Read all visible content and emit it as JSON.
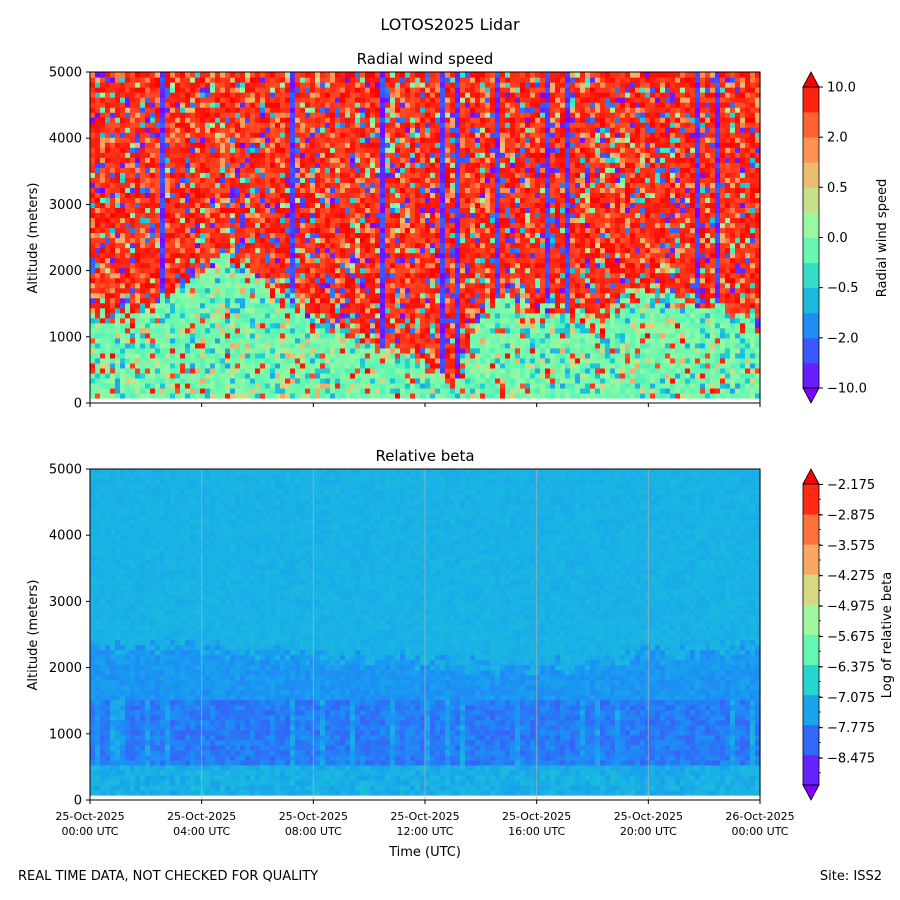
{
  "figure_title": "LOTOS2025 Lidar",
  "footer": {
    "left": "REAL TIME DATA, NOT CHECKED FOR QUALITY",
    "right": "Site: ISS2"
  },
  "colors": {
    "rainbow": [
      "#8000ff",
      "#4050fb",
      "#1996f3",
      "#1bcfd4",
      "#60f7b4",
      "#a2f89e",
      "#e1d17e",
      "#ff9a5a",
      "#ff5b2c",
      "#ff0000"
    ]
  },
  "chart_data": [
    {
      "type": "heatmap",
      "title": "Radial wind speed",
      "xlabel": "",
      "ylabel": "Altitude (meters)",
      "x_range_hours": [
        0,
        24
      ],
      "ylim": [
        0,
        5000
      ],
      "y_ticks": [
        "0",
        "1000",
        "2000",
        "3000",
        "4000",
        "5000"
      ],
      "colorbar": {
        "label": "Radial wind speed",
        "levels": 12,
        "tick_labels": [
          "10.0",
          "2.0",
          "0.5",
          "0.0",
          "−0.5",
          "−2.0",
          "−10.0"
        ]
      },
      "boundary_layer_top_m": [
        {
          "hour": 0,
          "alt": 1250
        },
        {
          "hour": 2,
          "alt": 1450
        },
        {
          "hour": 4,
          "alt": 1950
        },
        {
          "hour": 5,
          "alt": 2300
        },
        {
          "hour": 6,
          "alt": 1900
        },
        {
          "hour": 8,
          "alt": 1300
        },
        {
          "hour": 10,
          "alt": 900
        },
        {
          "hour": 12,
          "alt": 600
        },
        {
          "hour": 13,
          "alt": 200
        },
        {
          "hour": 14,
          "alt": 1500
        },
        {
          "hour": 16,
          "alt": 1450
        },
        {
          "hour": 18,
          "alt": 1300
        },
        {
          "hour": 20,
          "alt": 1700
        },
        {
          "hour": 22,
          "alt": 1500
        },
        {
          "hour": 24,
          "alt": 1200
        }
      ]
    },
    {
      "type": "heatmap",
      "title": "Relative beta",
      "xlabel": "Time (UTC)",
      "ylabel": "Altitude (meters)",
      "x_range_hours": [
        0,
        24
      ],
      "ylim": [
        0,
        5000
      ],
      "y_ticks": [
        "0",
        "1000",
        "2000",
        "3000",
        "4000",
        "5000"
      ],
      "x_ticks": [
        {
          "date": "25-Oct-2025",
          "time": "00:00 UTC"
        },
        {
          "date": "25-Oct-2025",
          "time": "04:00 UTC"
        },
        {
          "date": "25-Oct-2025",
          "time": "08:00 UTC"
        },
        {
          "date": "25-Oct-2025",
          "time": "12:00 UTC"
        },
        {
          "date": "25-Oct-2025",
          "time": "16:00 UTC"
        },
        {
          "date": "25-Oct-2025",
          "time": "20:00 UTC"
        },
        {
          "date": "26-Oct-2025",
          "time": "00:00 UTC"
        }
      ],
      "colorbar": {
        "label": "Log of relative beta",
        "levels": 10,
        "tick_labels": [
          "−2.175",
          "−2.875",
          "−3.575",
          "−4.275",
          "−4.975",
          "−5.675",
          "−6.375",
          "−7.075",
          "−7.775",
          "−8.475"
        ]
      },
      "aerosol_layer_top_m": [
        {
          "hour": 0,
          "alt": 2400
        },
        {
          "hour": 4,
          "alt": 2300
        },
        {
          "hour": 8,
          "alt": 2200
        },
        {
          "hour": 12,
          "alt": 2100
        },
        {
          "hour": 16,
          "alt": 2000
        },
        {
          "hour": 20,
          "alt": 2200
        },
        {
          "hour": 24,
          "alt": 2300
        }
      ]
    }
  ]
}
